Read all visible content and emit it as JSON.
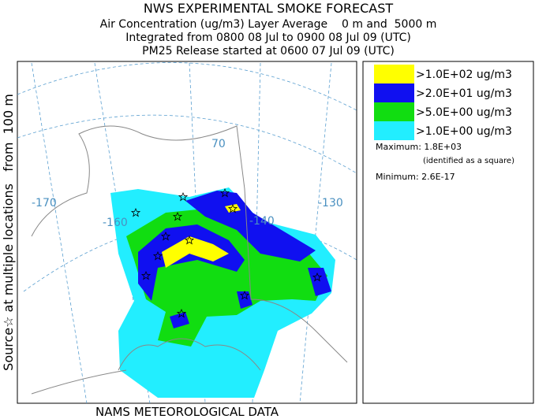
{
  "header": {
    "title": "NWS EXPERIMENTAL SMOKE FORECAST",
    "lines": [
      "Air Concentration (ug/m3) Layer Average    0 m and  5000 m",
      "Integrated from 0800 08 Jul to 0900 08 Jul 09 (UTC)",
      "PM25 Release started at 0600 07 Jul 09 (UTC)"
    ]
  },
  "side_label": "Source☆ at multiple locations   from  100 m",
  "footer": "NAMS METEOROLOGICAL DATA",
  "map": {
    "graticule_labels": [
      "-170",
      "-160",
      "-140",
      "-130",
      "70"
    ]
  },
  "legend": {
    "items": [
      {
        "label": ">1.0E+02 ug/m3",
        "color": "#ffff00"
      },
      {
        "label": ">2.0E+01 ug/m3",
        "color": "#1010f0"
      },
      {
        "label": ">5.0E+00 ug/m3",
        "color": "#11dd11"
      },
      {
        "label": ">1.0E+00 ug/m3",
        "color": "#22eeff"
      }
    ],
    "maximum": "Maximum: 1.8E+03",
    "max_note": "(identified as a square)",
    "minimum": "Minimum: 2.6E-17"
  }
}
